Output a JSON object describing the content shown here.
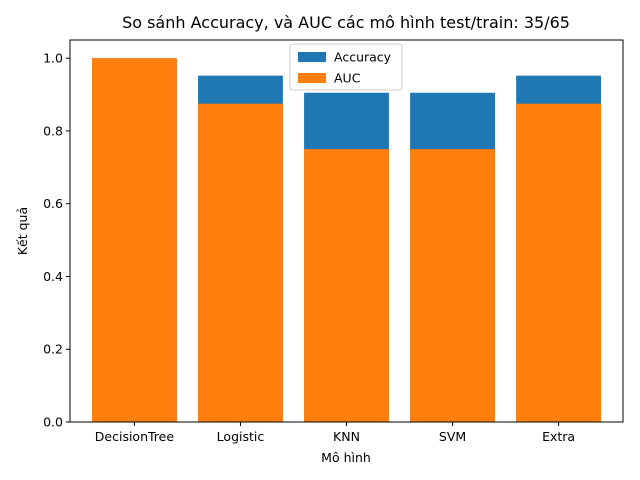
{
  "chart_data": {
    "type": "bar",
    "title": "So sánh Accuracy, và AUC các mô hình test/train: 35/65",
    "xlabel": "Mô hình",
    "ylabel": "Kết quả",
    "categories": [
      "DecisionTree",
      "Logistic",
      "KNN",
      "SVM",
      "Extra"
    ],
    "series": [
      {
        "name": "Accuracy",
        "color": "#1f77b4",
        "values": [
          1.0,
          0.952,
          0.905,
          0.905,
          0.952
        ]
      },
      {
        "name": "AUC",
        "color": "#ff7f0e",
        "values": [
          1.0,
          0.875,
          0.75,
          0.75,
          0.875
        ]
      }
    ],
    "ylim": [
      0,
      1.05
    ],
    "yticks": [
      "0.0",
      "0.2",
      "0.4",
      "0.6",
      "0.8",
      "1.0"
    ],
    "legend_position": "top-center",
    "grid": false
  }
}
